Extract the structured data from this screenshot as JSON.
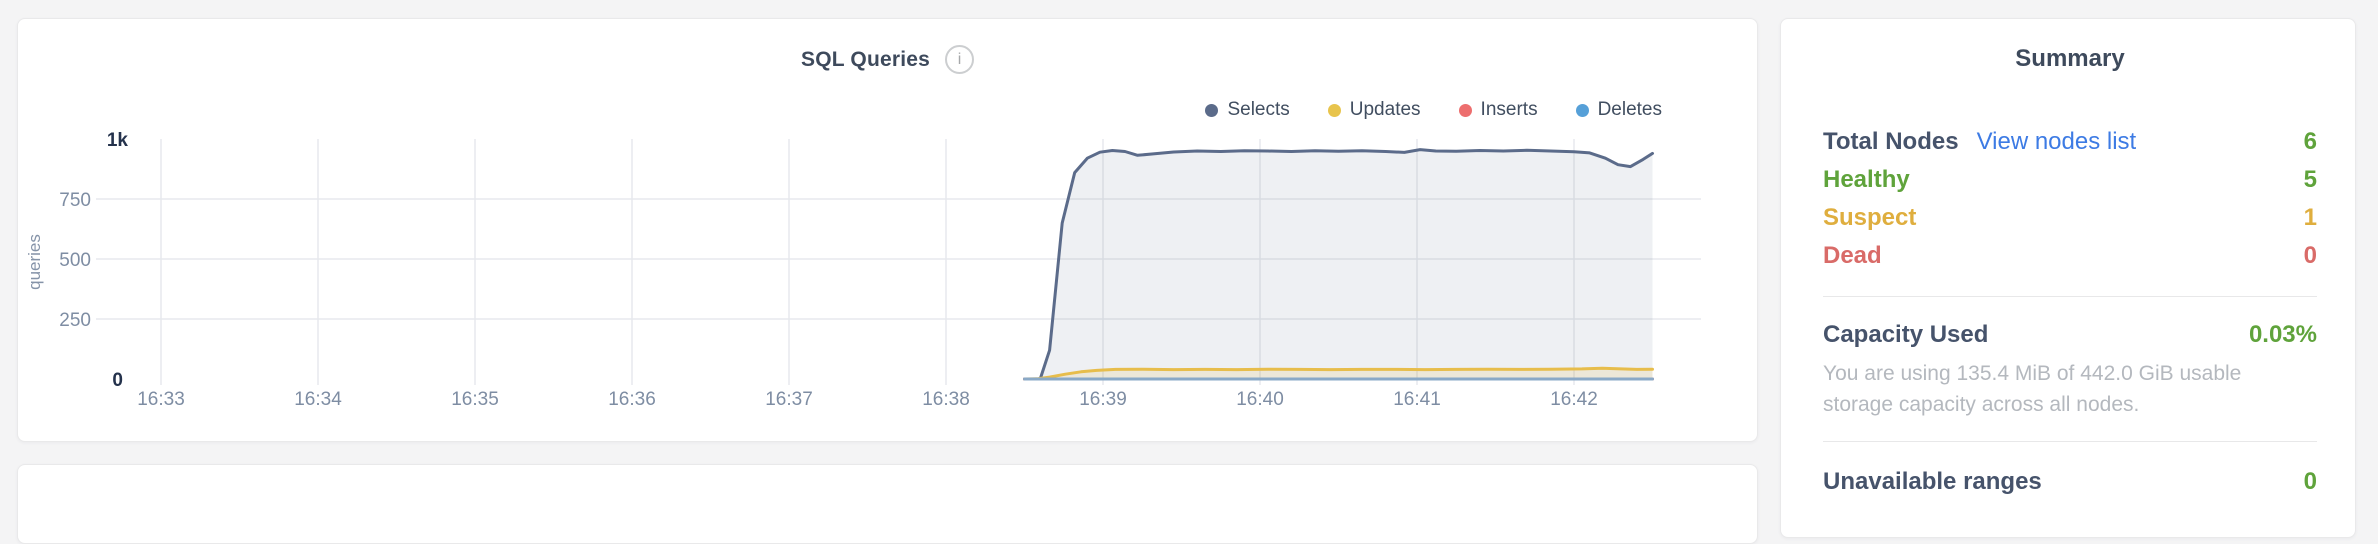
{
  "colors": {
    "heading": "#3e4a5c",
    "dark": "#46536b",
    "green": "#5fa33b",
    "yellow": "#dfae3e",
    "red": "#d96b68",
    "link": "#3d7be4",
    "axis": "#7e8da3",
    "grid": "#e7e9ed",
    "descgray": "#b4b8be"
  },
  "chart_card": {
    "title": "SQL Queries",
    "info_icon_glyph": "i"
  },
  "chart_data": {
    "type": "area",
    "title": "SQL Queries",
    "ylabel": "queries",
    "ylim": [
      0,
      1000
    ],
    "grid": true,
    "legend_position": "top-right",
    "x_ticks": [
      "16:33",
      "16:34",
      "16:35",
      "16:36",
      "16:37",
      "16:38",
      "16:39",
      "16:40",
      "16:41",
      "16:42"
    ],
    "y_max_label": "1k",
    "y_min_label": "0",
    "y_mid_ticks": [
      {
        "label": "750",
        "value": 750
      },
      {
        "label": "500",
        "value": 500
      },
      {
        "label": "250",
        "value": 250
      }
    ],
    "y_grid_values": [
      250,
      500,
      750
    ],
    "legend": [
      {
        "name": "Selects",
        "color": "#5b6b8a"
      },
      {
        "name": "Updates",
        "color": "#e8c44c"
      },
      {
        "name": "Inserts",
        "color": "#ed6e6e"
      },
      {
        "name": "Deletes",
        "color": "#56a0d8"
      }
    ],
    "x_unit": "minutes after 16:33",
    "series": [
      {
        "name": "Selects",
        "color": "#5b6b8a",
        "fill": "rgba(91,107,138,0.10)",
        "x": [
          5.5,
          5.6,
          5.66,
          5.74,
          5.82,
          5.9,
          5.98,
          6.06,
          6.14,
          6.22,
          6.32,
          6.45,
          6.6,
          6.75,
          6.9,
          7.05,
          7.2,
          7.35,
          7.5,
          7.65,
          7.8,
          7.92,
          8.02,
          8.12,
          8.25,
          8.4,
          8.55,
          8.7,
          8.85,
          9.0,
          9.1,
          9.2,
          9.28,
          9.36,
          9.44,
          9.5
        ],
        "values": [
          0,
          0,
          120,
          650,
          860,
          920,
          945,
          952,
          948,
          932,
          938,
          946,
          950,
          948,
          951,
          950,
          948,
          951,
          949,
          951,
          948,
          944,
          956,
          950,
          949,
          952,
          950,
          953,
          950,
          947,
          942,
          920,
          893,
          885,
          915,
          940
        ]
      },
      {
        "name": "Updates",
        "color": "#e7bd4b",
        "fill": "rgba(231,189,75,0.16)",
        "x": [
          5.5,
          5.58,
          5.66,
          5.76,
          5.86,
          5.96,
          6.08,
          6.25,
          6.45,
          6.65,
          6.85,
          7.05,
          7.25,
          7.45,
          7.65,
          7.85,
          8.05,
          8.25,
          8.45,
          8.65,
          8.85,
          9.05,
          9.18,
          9.3,
          9.4,
          9.5
        ],
        "values": [
          0,
          1,
          8,
          20,
          30,
          36,
          40,
          41,
          39,
          40,
          39,
          41,
          40,
          39,
          40,
          40,
          39,
          40,
          41,
          40,
          41,
          42,
          45,
          42,
          40,
          41
        ]
      },
      {
        "name": "Inserts",
        "color": "#e06c6c",
        "fill": null,
        "x": [
          5.5,
          9.5
        ],
        "values": [
          0,
          0
        ]
      },
      {
        "name": "Deletes",
        "color": "#8aa9c7",
        "fill": null,
        "x": [
          5.5,
          9.5
        ],
        "values": [
          0,
          0
        ]
      }
    ]
  },
  "summary": {
    "title": "Summary",
    "rows": [
      {
        "label": "Total Nodes",
        "link": "View nodes list",
        "value": "6"
      },
      {
        "label": "Healthy",
        "value": "5"
      },
      {
        "label": "Suspect",
        "value": "1"
      },
      {
        "label": "Dead",
        "value": "0"
      }
    ],
    "capacity": {
      "label": "Capacity Used",
      "value": "0.03%",
      "description": "You are using 135.4 MiB of 442.0 GiB usable storage capacity across all nodes."
    },
    "unavailable": {
      "label": "Unavailable ranges",
      "value": "0"
    }
  }
}
